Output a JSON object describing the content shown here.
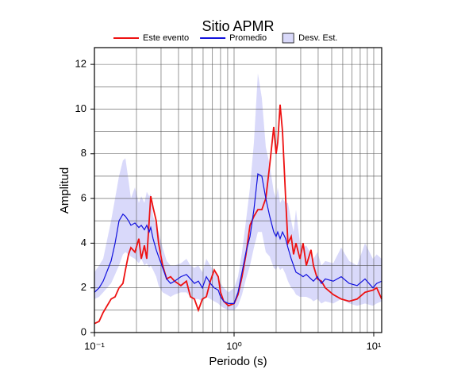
{
  "chart_data": {
    "type": "line",
    "title": "Sitio APMR",
    "xlabel": "Periodo (s)",
    "ylabel": "Amplitud",
    "log_x": true,
    "grid": true,
    "xlim": [
      0.1,
      11.4
    ],
    "ylim": [
      0,
      12.75
    ],
    "xticks": [
      {
        "value": 0.1,
        "label": "10⁻¹"
      },
      {
        "value": 1,
        "label": "10⁰"
      },
      {
        "value": 10,
        "label": "10¹"
      }
    ],
    "x_minor_ticks": [
      0.2,
      0.3,
      0.4,
      0.5,
      0.6,
      0.7,
      0.8,
      0.9,
      2,
      3,
      4,
      5,
      6,
      7,
      8,
      9
    ],
    "yticks": [
      0,
      2,
      4,
      6,
      8,
      10,
      12
    ],
    "y_minor_ticks": [
      1,
      3,
      5,
      7,
      9,
      11
    ],
    "x": [
      0.1,
      0.108,
      0.1155,
      0.1316,
      0.1406,
      0.15,
      0.16,
      0.1667,
      0.1755,
      0.1825,
      0.195,
      0.208,
      0.2165,
      0.228,
      0.237,
      0.2466,
      0.253,
      0.263,
      0.277,
      0.288,
      0.308,
      0.329,
      0.351,
      0.375,
      0.416,
      0.456,
      0.487,
      0.52,
      0.555,
      0.593,
      0.633,
      0.676,
      0.721,
      0.77,
      0.8,
      0.843,
      0.912,
      1.0,
      1.067,
      1.14,
      1.217,
      1.3,
      1.387,
      1.48,
      1.58,
      1.687,
      1.8,
      1.923,
      2.0,
      2.053,
      2.136,
      2.222,
      2.34,
      2.43,
      2.565,
      2.667,
      2.775,
      2.963,
      3.12,
      3.29,
      3.556,
      3.7,
      3.95,
      4.22,
      4.5,
      5.13,
      5.85,
      6.67,
      7.6,
      8.66,
      9.87,
      10.5,
      11.4
    ],
    "band": {
      "name": "Desv. Est.",
      "color": "#d9d9fa",
      "edge": "#000000",
      "lower": [
        1.5,
        1.6,
        1.8,
        2.2,
        2.6,
        3.0,
        3.5,
        3.6,
        3.5,
        3.4,
        3.3,
        3.1,
        3.3,
        3.0,
        3.1,
        2.9,
        3.0,
        2.8,
        2.5,
        2.1,
        1.8,
        1.7,
        1.6,
        1.7,
        1.8,
        1.8,
        1.6,
        1.5,
        1.5,
        1.4,
        1.6,
        1.5,
        1.4,
        1.3,
        1.2,
        1.1,
        1.0,
        1.0,
        1.2,
        1.7,
        2.4,
        3.0,
        3.8,
        4.5,
        4.5,
        3.6,
        3.4,
        2.9,
        2.8,
        3.0,
        2.8,
        2.9,
        2.6,
        2.3,
        2.0,
        1.9,
        1.7,
        1.6,
        1.6,
        1.6,
        1.5,
        1.4,
        1.5,
        1.3,
        1.4,
        1.3,
        1.5,
        1.3,
        1.2,
        1.3,
        1.2,
        1.3,
        1.4
      ],
      "upper": [
        2.7,
        3.0,
        3.3,
        5.0,
        6.0,
        7.0,
        7.7,
        7.8,
        6.8,
        6.0,
        6.5,
        5.8,
        6.1,
        5.8,
        6.3,
        6.1,
        6.2,
        5.2,
        4.8,
        4.5,
        3.8,
        3.2,
        3.0,
        3.0,
        3.1,
        3.3,
        3.0,
        2.9,
        3.0,
        2.7,
        3.3,
        3.0,
        2.7,
        2.5,
        2.2,
        2.0,
        1.8,
        2.0,
        2.5,
        3.6,
        5.0,
        6.5,
        8.5,
        11.6,
        10.5,
        8.3,
        7.5,
        6.3,
        6.0,
        6.5,
        5.8,
        6.0,
        5.8,
        5.8,
        5.0,
        4.5,
        5.5,
        4.0,
        3.8,
        3.9,
        3.5,
        3.3,
        3.6,
        3.0,
        3.2,
        3.1,
        3.8,
        3.2,
        3.0,
        4.0,
        3.3,
        3.5,
        3.3
      ]
    },
    "series": [
      {
        "name": "Este evento",
        "color": "#ee1111",
        "values": [
          0.4,
          0.5,
          0.9,
          1.5,
          1.6,
          2.0,
          2.2,
          2.8,
          3.5,
          3.8,
          3.6,
          4.2,
          3.3,
          3.9,
          3.3,
          5.0,
          6.1,
          5.6,
          5.0,
          4.0,
          3.0,
          2.4,
          2.5,
          2.3,
          2.1,
          2.3,
          1.6,
          1.5,
          1.0,
          1.5,
          1.6,
          2.3,
          2.8,
          2.5,
          1.8,
          1.4,
          1.2,
          1.3,
          1.7,
          2.5,
          3.5,
          4.8,
          5.2,
          5.5,
          5.5,
          6.0,
          7.5,
          9.2,
          8.0,
          8.5,
          10.2,
          9.0,
          6.0,
          4.0,
          4.3,
          3.5,
          4.0,
          3.3,
          4.0,
          3.0,
          3.7,
          3.0,
          2.4,
          2.3,
          2.0,
          1.7,
          1.5,
          1.4,
          1.5,
          1.8,
          1.9,
          2.0,
          1.5
        ]
      },
      {
        "name": "Promedio",
        "color": "#1111dd",
        "values": [
          1.8,
          2.0,
          2.3,
          3.2,
          4.0,
          5.0,
          5.3,
          5.2,
          5.0,
          4.8,
          4.9,
          4.7,
          4.8,
          4.6,
          4.8,
          4.5,
          4.7,
          4.2,
          3.7,
          3.4,
          2.9,
          2.4,
          2.2,
          2.3,
          2.5,
          2.6,
          2.4,
          2.2,
          2.3,
          2.0,
          2.5,
          2.2,
          2.0,
          1.9,
          1.6,
          1.4,
          1.3,
          1.3,
          1.8,
          2.7,
          3.6,
          4.3,
          5.5,
          7.1,
          7.0,
          6.0,
          5.2,
          4.5,
          4.3,
          4.5,
          4.2,
          4.5,
          4.2,
          3.8,
          3.3,
          3.0,
          2.7,
          2.6,
          2.5,
          2.6,
          2.4,
          2.3,
          2.5,
          2.2,
          2.4,
          2.3,
          2.5,
          2.2,
          2.1,
          2.4,
          2.0,
          2.2,
          2.3
        ]
      }
    ]
  }
}
